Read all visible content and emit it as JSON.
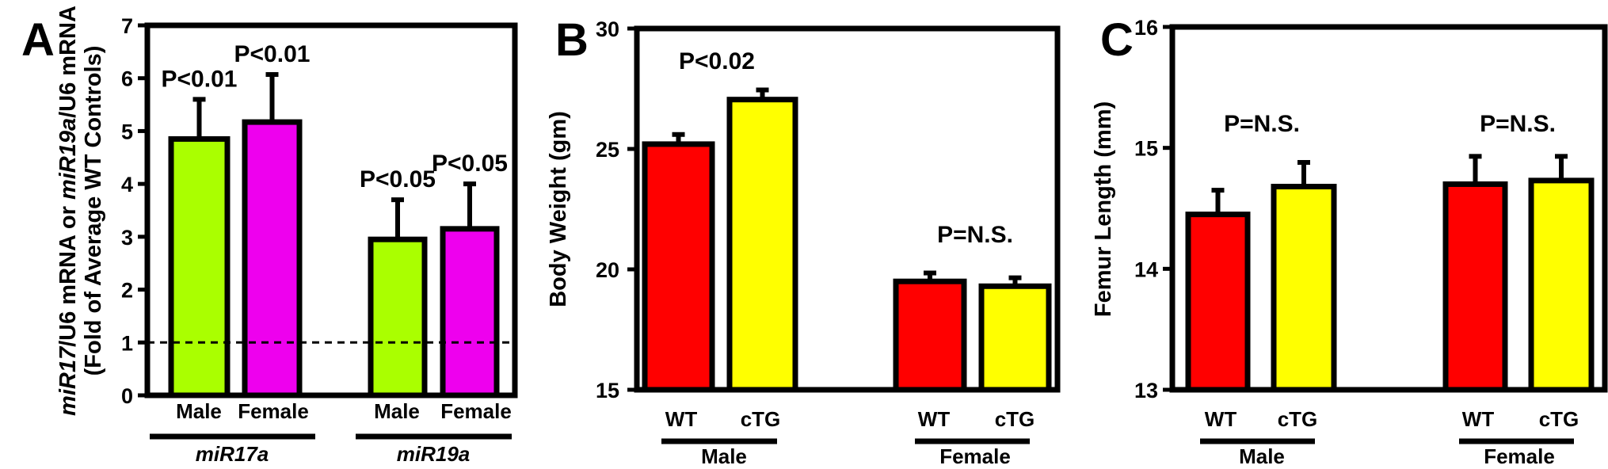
{
  "chart_data": [
    {
      "type": "bar",
      "panel": "A",
      "ylabel_lines": [
        [
          {
            "text": "miR17",
            "italic": true
          },
          {
            "text": "/U6 mRNA or ",
            "italic": false
          },
          {
            "text": "miR19a",
            "italic": true
          },
          {
            "text": "/U6 mRNA",
            "italic": false
          }
        ],
        [
          {
            "text": "(Fold of Average WT Controls)",
            "italic": false
          }
        ]
      ],
      "ylim": [
        0,
        7
      ],
      "yticks": [
        "0",
        "1",
        "2",
        "3",
        "4",
        "5",
        "6",
        "7"
      ],
      "reference_line": 1,
      "bars": [
        {
          "label": "Male",
          "group": "miR17a",
          "value": 4.85,
          "error": 0.75,
          "color": "#aaff00",
          "annotation": "P<0.01"
        },
        {
          "label": "Female",
          "group": "miR17a",
          "value": 5.17,
          "error": 0.9,
          "color": "#ee00ee",
          "annotation": "P<0.01"
        },
        {
          "label": "Male",
          "group": "miR19a",
          "value": 2.95,
          "error": 0.75,
          "color": "#aaff00",
          "annotation": "P<0.05"
        },
        {
          "label": "Female",
          "group": "miR19a",
          "value": 3.15,
          "error": 0.85,
          "color": "#ee00ee",
          "annotation": "P<0.05"
        }
      ],
      "groups": [
        {
          "label": "miR17a",
          "italic": true
        },
        {
          "label": "miR19a",
          "italic": true
        }
      ]
    },
    {
      "type": "bar",
      "panel": "B",
      "ylabel_lines": [
        [
          {
            "text": "Body Weight (gm)",
            "italic": false
          }
        ]
      ],
      "ylim": [
        15,
        30
      ],
      "yticks": [
        "15",
        "20",
        "25",
        "30"
      ],
      "bars": [
        {
          "label": "WT",
          "group": "Male",
          "value": 25.2,
          "error": 0.4,
          "color": "#ff0000"
        },
        {
          "label": "cTG",
          "group": "Male",
          "value": 27.05,
          "error": 0.4,
          "color": "#ffff00"
        },
        {
          "label": "WT",
          "group": "Female",
          "value": 19.5,
          "error": 0.35,
          "color": "#ff0000"
        },
        {
          "label": "cTG",
          "group": "Female",
          "value": 19.3,
          "error": 0.35,
          "color": "#ffff00"
        }
      ],
      "group_annotations": [
        "P<0.02",
        "P=N.S."
      ],
      "groups": [
        {
          "label": "Male",
          "italic": false
        },
        {
          "label": "Female",
          "italic": false
        }
      ]
    },
    {
      "type": "bar",
      "panel": "C",
      "ylabel_lines": [
        [
          {
            "text": "Femur Length (mm)",
            "italic": false
          }
        ]
      ],
      "ylim": [
        13,
        16
      ],
      "yticks": [
        "13",
        "14",
        "15",
        "16"
      ],
      "bars": [
        {
          "label": "WT",
          "group": "Male",
          "value": 14.45,
          "error": 0.2,
          "color": "#ff0000"
        },
        {
          "label": "cTG",
          "group": "Male",
          "value": 14.68,
          "error": 0.2,
          "color": "#ffff00"
        },
        {
          "label": "WT",
          "group": "Female",
          "value": 14.7,
          "error": 0.23,
          "color": "#ff0000"
        },
        {
          "label": "cTG",
          "group": "Female",
          "value": 14.73,
          "error": 0.2,
          "color": "#ffff00"
        }
      ],
      "group_annotations": [
        "P=N.S.",
        "P=N.S."
      ],
      "groups": [
        {
          "label": "Male",
          "italic": false
        },
        {
          "label": "Female",
          "italic": false
        }
      ]
    }
  ]
}
